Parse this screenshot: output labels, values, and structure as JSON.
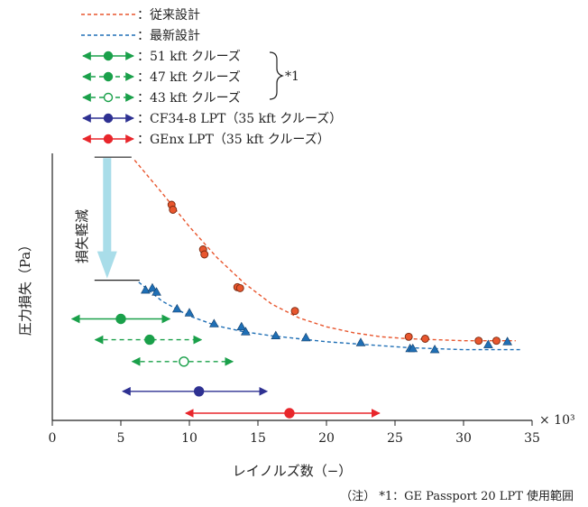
{
  "chart_data": {
    "type": "scatter",
    "xlabel": "レイノルズ数（−）",
    "ylabel": "圧力損失（Pa）",
    "x_multiplier": "× 10³",
    "xlim": [
      0,
      35
    ],
    "x_ticks": [
      "0",
      "5",
      "10",
      "15",
      "20",
      "25",
      "30",
      "35"
    ],
    "grid": false,
    "legend_position": "top-left",
    "legend": [
      {
        "key": "conventional",
        "label": "：従来設計",
        "color": "#e8562e",
        "style": "dashed"
      },
      {
        "key": "latest",
        "label": "：最新設計",
        "color": "#1f6fb5",
        "style": "dashed"
      },
      {
        "key": "c51",
        "label": "：51 kft クルーズ",
        "color": "#1aa04a",
        "style": "solid-filled"
      },
      {
        "key": "c47",
        "label": "：47 kft クルーズ",
        "color": "#1aa04a",
        "style": "dashed-filled"
      },
      {
        "key": "c43",
        "label": "：43 kft クルーズ",
        "color": "#1aa04a",
        "style": "dashed-open"
      },
      {
        "key": "cf34",
        "label": "：CF34-8 LPT（35 kft クルーズ）",
        "color": "#2e3192",
        "style": "solid-filled"
      },
      {
        "key": "genx",
        "label": "：GEnx LPT（35 kft クルーズ）",
        "color": "#e8262b",
        "style": "solid-filled"
      }
    ],
    "brace_label": "*1",
    "annotation": "損失軽減",
    "note": "（注） *1：GE Passport 20 LPT 使用範囲",
    "series": [
      {
        "name": "従来設計",
        "marker": "circle",
        "color": "#e8562e",
        "x": [
          8.7,
          8.8,
          11.0,
          11.1,
          13.5,
          13.7,
          17.7,
          26.0,
          27.2,
          31.1,
          32.4
        ],
        "y": [
          210,
          205,
          165,
          160,
          127,
          126,
          103,
          77,
          75,
          73,
          73
        ]
      },
      {
        "name": "最新設計",
        "marker": "triangle",
        "color": "#1f6fb5",
        "x": [
          6.8,
          7.3,
          7.6,
          9.1,
          10.0,
          11.8,
          13.8,
          14.1,
          16.3,
          18.5,
          22.5,
          26.1,
          26.3,
          27.9,
          31.8,
          33.2
        ],
        "y": [
          124,
          126,
          122,
          105,
          101,
          90,
          87,
          82,
          78,
          76,
          71,
          65,
          65,
          64,
          69,
          72
        ]
      }
    ],
    "conventional_curve": {
      "x": [
        6.0,
        8.0,
        10.0,
        12.0,
        14.0,
        16.0,
        18.0,
        20.0,
        22.0,
        24.0,
        26.0,
        28.0,
        30.0,
        32.0,
        33.8
      ],
      "y": [
        255,
        222,
        188,
        157,
        131,
        110,
        96,
        87,
        81,
        77,
        75,
        74,
        73,
        73,
        73
      ]
    },
    "latest_curve": {
      "x": [
        6.3,
        8.0,
        10.0,
        12.0,
        14.0,
        16.0,
        18.0,
        20.0,
        22.0,
        24.0,
        26.0,
        28.0,
        30.0,
        32.0,
        34.3
      ],
      "y": [
        132,
        113,
        98,
        88,
        82,
        78,
        75,
        72,
        70,
        68,
        66,
        65,
        64,
        64,
        64
      ]
    },
    "ranges": [
      {
        "key": "c51",
        "x0": 1.3,
        "x1": 8.7,
        "marker_x": 5.0,
        "y": 95,
        "dashed": false,
        "open": false
      },
      {
        "key": "c47",
        "x0": 3.0,
        "x1": 11.0,
        "marker_x": 7.1,
        "y": 74,
        "dashed": true,
        "open": false
      },
      {
        "key": "c43",
        "x0": 5.7,
        "x1": 13.3,
        "marker_x": 9.6,
        "y": 52,
        "dashed": true,
        "open": true
      },
      {
        "key": "cf34",
        "x0": 5.0,
        "x1": 15.8,
        "marker_x": 10.7,
        "y": 22,
        "dashed": false,
        "open": false
      },
      {
        "key": "genx",
        "x0": 9.6,
        "x1": 24.0,
        "marker_x": 17.3,
        "y": 0,
        "dashed": false,
        "open": false
      }
    ],
    "loss_arrow": {
      "x": 4.0,
      "y_top": 258,
      "y_bottom": 134
    }
  }
}
